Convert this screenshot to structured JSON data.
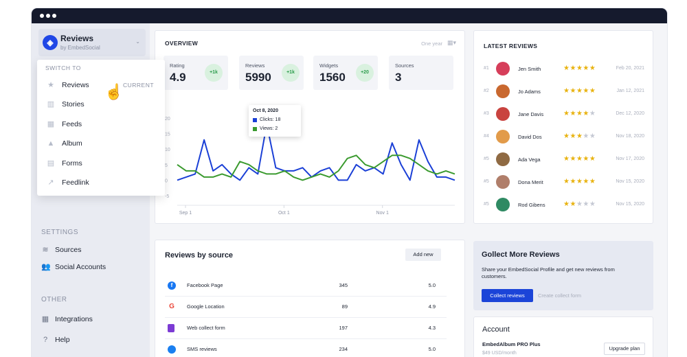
{
  "sidebar": {
    "brand_title": "Reviews",
    "brand_sub": "by EmbedSocial",
    "sections": {
      "settings": "SETTINGS",
      "other": "OTHER"
    },
    "settings_items": [
      {
        "label": "Sources",
        "icon": "layers-icon"
      },
      {
        "label": "Social Accounts",
        "icon": "users-icon"
      }
    ],
    "other_items": [
      {
        "label": "Integrations",
        "icon": "grid-icon"
      },
      {
        "label": "Help",
        "icon": "help-icon"
      }
    ]
  },
  "switch_menu": {
    "heading": "SWITCH TO",
    "current_label": "CURRENT",
    "items": [
      {
        "label": "Reviews",
        "icon": "star-icon"
      },
      {
        "label": "Stories",
        "icon": "stories-icon"
      },
      {
        "label": "Feeds",
        "icon": "feeds-icon"
      },
      {
        "label": "Album",
        "icon": "album-icon"
      },
      {
        "label": "Forms",
        "icon": "forms-icon"
      },
      {
        "label": "Feedlink",
        "icon": "feedlink-icon"
      }
    ]
  },
  "overview": {
    "title": "OVERVIEW",
    "range": "One year",
    "stats": [
      {
        "label": "Rating",
        "value": "4.9",
        "badge": "+1k"
      },
      {
        "label": "Reviews",
        "value": "5990",
        "badge": "+1k"
      },
      {
        "label": "Widgets",
        "value": "1560",
        "badge": "+20"
      },
      {
        "label": "Sources",
        "value": "3",
        "badge": ""
      }
    ],
    "tooltip": {
      "date": "Oct 8, 2020",
      "clicks": "Clicks: 18",
      "views": "Views: 2"
    }
  },
  "chart_data": {
    "type": "line",
    "x_tick_labels": [
      "Sep 1",
      "Oct 1",
      "Nov 1"
    ],
    "y_tick_labels": [
      "20",
      "15",
      "10",
      "5",
      "0",
      "-5"
    ],
    "ylim": [
      -5,
      22
    ],
    "series": [
      {
        "name": "Clicks",
        "color": "#1a3fd6",
        "values": [
          0,
          1,
          2,
          13,
          3,
          5,
          2,
          0,
          4,
          2,
          18,
          4,
          3,
          3,
          4,
          1,
          3,
          4,
          0,
          0,
          5,
          3,
          4,
          2,
          12,
          5,
          0,
          13,
          6,
          1,
          1,
          0
        ]
      },
      {
        "name": "Views",
        "color": "#3a9a2e",
        "values": [
          5,
          3,
          3,
          1,
          1,
          2,
          1,
          6,
          5,
          3,
          2,
          2,
          3,
          1,
          0,
          1,
          2,
          1,
          3,
          7,
          8,
          5,
          4,
          6,
          8,
          8,
          7,
          5,
          3,
          2,
          3,
          2
        ]
      }
    ]
  },
  "latest_reviews": {
    "title": "LATEST REVIEWS",
    "star_color": "#e8b20e",
    "rows": [
      {
        "num": "#1",
        "name": "Jen Smith",
        "rating": 5,
        "date": "Feb 20, 2021",
        "avatar_color": "#d63e5a"
      },
      {
        "num": "#2",
        "name": "Jo Adams",
        "rating": 5,
        "date": "Jan 12, 2021",
        "avatar_color": "#c9682f"
      },
      {
        "num": "#3",
        "name": "Jane Davis",
        "rating": 4,
        "date": "Dec 12, 2020",
        "avatar_color": "#c9433f"
      },
      {
        "num": "#4",
        "name": "David Dos",
        "rating": 3,
        "date": "Nov 18, 2020",
        "avatar_color": "#e29b4a"
      },
      {
        "num": "#5",
        "name": "Ada Vega",
        "rating": 5,
        "date": "Nov 17, 2020",
        "avatar_color": "#8f6a43"
      },
      {
        "num": "#5",
        "name": "Dona Merit",
        "rating": 5,
        "date": "Nov 15, 2020",
        "avatar_color": "#b07e6a"
      },
      {
        "num": "#5",
        "name": "Rod Gibens",
        "rating": 2,
        "date": "Nov 15, 2020",
        "avatar_color": "#2f8a63"
      }
    ]
  },
  "reviews_by_source": {
    "title": "Reviews by source",
    "add_label": "Add new",
    "rows": [
      {
        "name": "Facebook Page",
        "count": "345",
        "rating": "5.0",
        "icon": "facebook-icon",
        "color": "#1877f2"
      },
      {
        "name": "Google Location",
        "count": "89",
        "rating": "4.9",
        "icon": "google-icon",
        "color": "#ea4335"
      },
      {
        "name": "Web collect form",
        "count": "197",
        "rating": "4.3",
        "icon": "form-icon",
        "color": "#7c3bd4"
      },
      {
        "name": "SMS reviews",
        "count": "234",
        "rating": "5.0",
        "icon": "sms-icon",
        "color": "#1a7ff0"
      }
    ]
  },
  "collect": {
    "title": "Gollect More Reviews",
    "text": "Share your EmbedSocial Profile and get new reviews from customers.",
    "button": "Collect reviews",
    "link": "Create collect form"
  },
  "account": {
    "title": "Account",
    "plan": "EmbedAlbum PRO Plus",
    "price": "$49 USD/month",
    "upgrade": "Upgrade plan"
  }
}
